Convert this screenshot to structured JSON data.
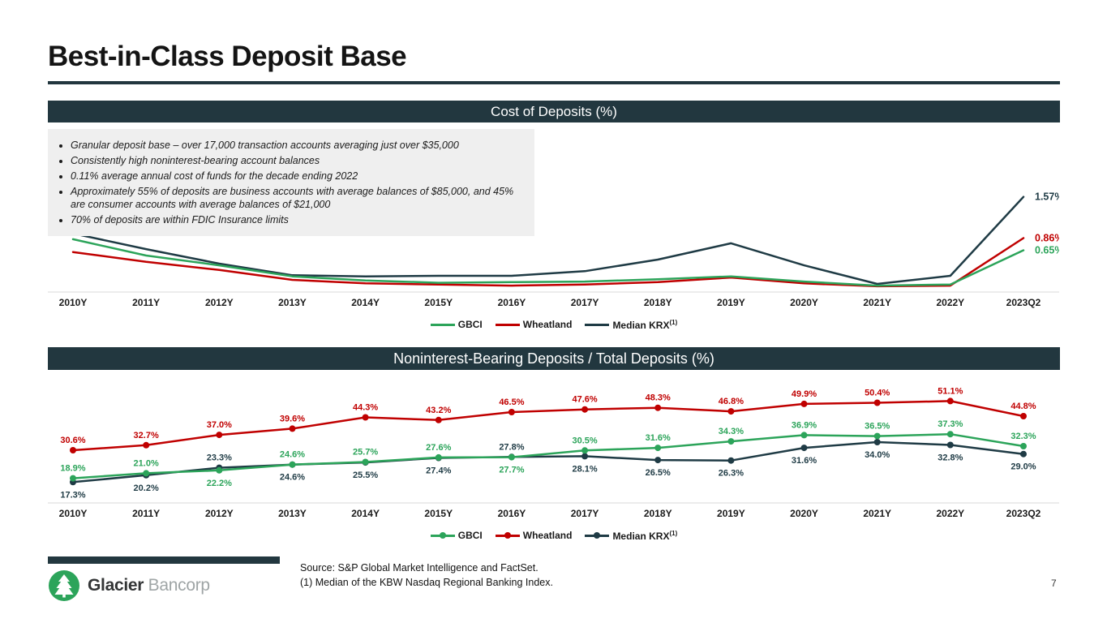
{
  "page": {
    "title": "Best-in-Class Deposit Base",
    "page_number": "7"
  },
  "colors": {
    "header_bar": "#22373F",
    "accent_dark": "#22373F",
    "gbci_green": "#2CA45A",
    "wheatland_red": "#C00000",
    "krx_navy": "#1F3B45",
    "bullets_bg": "#EFEFEF"
  },
  "bullets": [
    "Granular deposit base – over 17,000 transaction accounts averaging just over $35,000",
    "Consistently high noninterest-bearing account balances",
    "0.11% average annual cost of funds for the decade ending 2022",
    "Approximately 55% of deposits are business accounts with average balances of $85,000, and 45% are consumer accounts with average balances of $21,000",
    "70% of deposits are within FDIC Insurance limits"
  ],
  "legend": [
    {
      "label": "GBCI",
      "color": "#2CA45A",
      "sup": ""
    },
    {
      "label": "Wheatland",
      "color": "#C00000",
      "sup": ""
    },
    {
      "label": "Median KRX",
      "color": "#1F3B45",
      "sup": "(1)"
    }
  ],
  "chart_data": [
    {
      "type": "line",
      "title": "Cost of Deposits (%)",
      "categories": [
        "2010Y",
        "2011Y",
        "2012Y",
        "2013Y",
        "2014Y",
        "2015Y",
        "2016Y",
        "2017Y",
        "2018Y",
        "2019Y",
        "2020Y",
        "2021Y",
        "2022Y",
        "2023Q2"
      ],
      "ylim": [
        0,
        2.0
      ],
      "grid": false,
      "legend_position": "bottom",
      "point_labels": false,
      "end_labels": true,
      "series": [
        {
          "name": "GBCI",
          "color": "#2CA45A",
          "end_label": "0.65%",
          "values": [
            0.84,
            0.56,
            0.39,
            0.2,
            0.13,
            0.09,
            0.1,
            0.11,
            0.15,
            0.2,
            0.11,
            0.04,
            0.06,
            0.65
          ]
        },
        {
          "name": "Wheatland",
          "color": "#C00000",
          "end_label": "0.86%",
          "values": [
            0.62,
            0.45,
            0.31,
            0.14,
            0.08,
            0.06,
            0.04,
            0.06,
            0.1,
            0.18,
            0.08,
            0.03,
            0.04,
            0.86
          ]
        },
        {
          "name": "Median KRX",
          "color": "#1F3B45",
          "end_label": "1.57%",
          "values": [
            0.94,
            0.67,
            0.42,
            0.22,
            0.2,
            0.21,
            0.21,
            0.29,
            0.49,
            0.77,
            0.39,
            0.07,
            0.21,
            1.57
          ]
        }
      ]
    },
    {
      "type": "line",
      "title": "Noninterest-Bearing Deposits / Total Deposits (%)",
      "categories": [
        "2010Y",
        "2011Y",
        "2012Y",
        "2013Y",
        "2014Y",
        "2015Y",
        "2016Y",
        "2017Y",
        "2018Y",
        "2019Y",
        "2020Y",
        "2021Y",
        "2022Y",
        "2023Q2"
      ],
      "ylim": [
        12,
        58
      ],
      "grid": false,
      "legend_position": "bottom",
      "point_labels": true,
      "end_labels": false,
      "series": [
        {
          "name": "GBCI",
          "color": "#2CA45A",
          "values": [
            18.9,
            21.0,
            22.2,
            24.6,
            25.7,
            27.6,
            27.7,
            30.5,
            31.6,
            34.3,
            36.9,
            36.5,
            37.3,
            32.3
          ]
        },
        {
          "name": "Wheatland",
          "color": "#C00000",
          "values": [
            30.6,
            32.7,
            37.0,
            39.6,
            44.3,
            43.2,
            46.5,
            47.6,
            48.3,
            46.8,
            49.9,
            50.4,
            51.1,
            44.8
          ]
        },
        {
          "name": "Median KRX",
          "color": "#1F3B45",
          "values": [
            17.3,
            20.2,
            23.3,
            24.6,
            25.5,
            27.4,
            27.8,
            28.1,
            26.5,
            26.3,
            31.6,
            34.0,
            32.8,
            29.0
          ]
        }
      ]
    }
  ],
  "footer": {
    "source": "Source: S&P Global Market Intelligence and FactSet.",
    "note": "(1)   Median of the KBW Nasdaq Regional Banking Index.",
    "brand_bold": "Glacier",
    "brand_light": "Bancorp"
  }
}
